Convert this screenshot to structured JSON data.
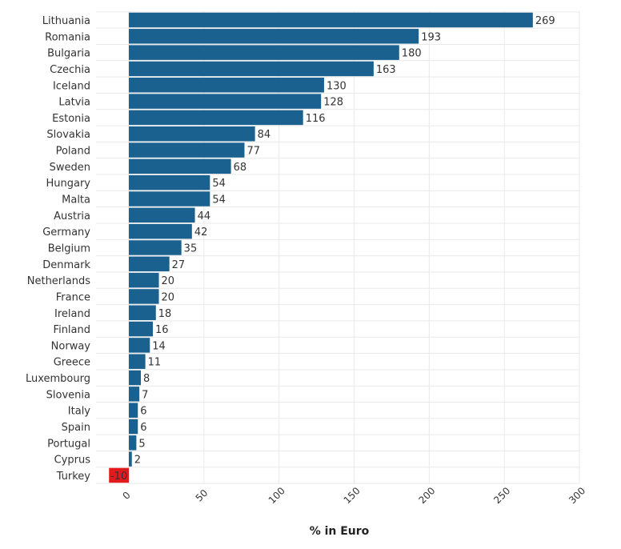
{
  "colors": {
    "bar": "#1b618f",
    "negative_bar": "#e31a1c",
    "negative_label": "#ffffff",
    "grid": "#e9e9e9",
    "text": "#333333"
  },
  "chart_data": {
    "type": "bar",
    "orientation": "horizontal",
    "categories": [
      "Lithuania",
      "Romania",
      "Bulgaria",
      "Czechia",
      "Iceland",
      "Latvia",
      "Estonia",
      "Slovakia",
      "Poland",
      "Sweden",
      "Hungary",
      "Malta",
      "Austria",
      "Germany",
      "Belgium",
      "Denmark",
      "Netherlands",
      "France",
      "Ireland",
      "Finland",
      "Norway",
      "Greece",
      "Luxembourg",
      "Slovenia",
      "Italy",
      "Spain",
      "Portugal",
      "Cyprus",
      "Turkey"
    ],
    "values": [
      269,
      193,
      180,
      163,
      130,
      128,
      116,
      84,
      77,
      68,
      54,
      54,
      44,
      42,
      35,
      27,
      20,
      20,
      18,
      16,
      14,
      11,
      8,
      7,
      6,
      6,
      5,
      2,
      -10
    ],
    "xlabel": "% in Euro",
    "ylabel": "",
    "xlim": [
      0,
      300
    ],
    "xticks": [
      0,
      50,
      100,
      150,
      200,
      250,
      300
    ],
    "grid": true,
    "data_labels": true
  }
}
